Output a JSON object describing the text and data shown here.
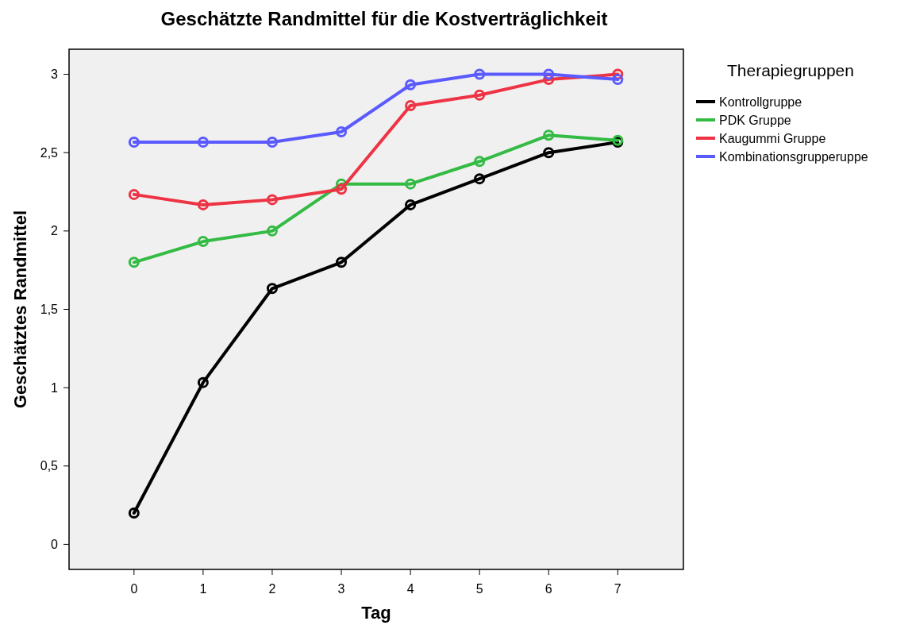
{
  "chart_data": {
    "type": "line",
    "title": "Geschätzte Randmittel für die Kostverträglichkeit",
    "xlabel": "Tag",
    "ylabel": "Geschätztes Randmittel",
    "legend_title": "Therapiegruppen",
    "legend": "right",
    "marker": "circle",
    "line_style": "solid",
    "grid": false,
    "x": [
      0,
      1,
      2,
      3,
      4,
      5,
      6,
      7
    ],
    "series": [
      {
        "name": "Kontrollgruppe",
        "color": "#000000",
        "values": [
          0.2,
          1.033,
          1.633,
          1.8,
          2.167,
          2.333,
          2.5,
          2.567
        ]
      },
      {
        "name": "PDK Gruppe",
        "color": "#33bb44",
        "values": [
          1.8,
          1.933,
          2.0,
          2.3,
          2.3,
          2.444,
          2.611,
          2.578
        ]
      },
      {
        "name": "Kaugummi Gruppe",
        "color": "#ee3344",
        "values": [
          2.233,
          2.167,
          2.2,
          2.267,
          2.8,
          2.867,
          2.967,
          3.0
        ]
      },
      {
        "name": "Kombinationsgrupperuppe",
        "color": "#5a5aff",
        "values": [
          2.567,
          2.567,
          2.567,
          2.633,
          2.933,
          3.0,
          3.0,
          2.967
        ]
      }
    ],
    "xlim": [
      -0.94,
      7.95
    ],
    "xticks": [
      0,
      1,
      2,
      3,
      4,
      5,
      6,
      7
    ],
    "ylim": [
      -0.16,
      3.16
    ],
    "yticks": [
      0,
      {
        "value": 0.5,
        "label": "0,5"
      },
      1,
      {
        "value": 1.5,
        "label": "1,5"
      },
      2,
      {
        "value": 2.5,
        "label": "2,5"
      },
      3
    ]
  }
}
